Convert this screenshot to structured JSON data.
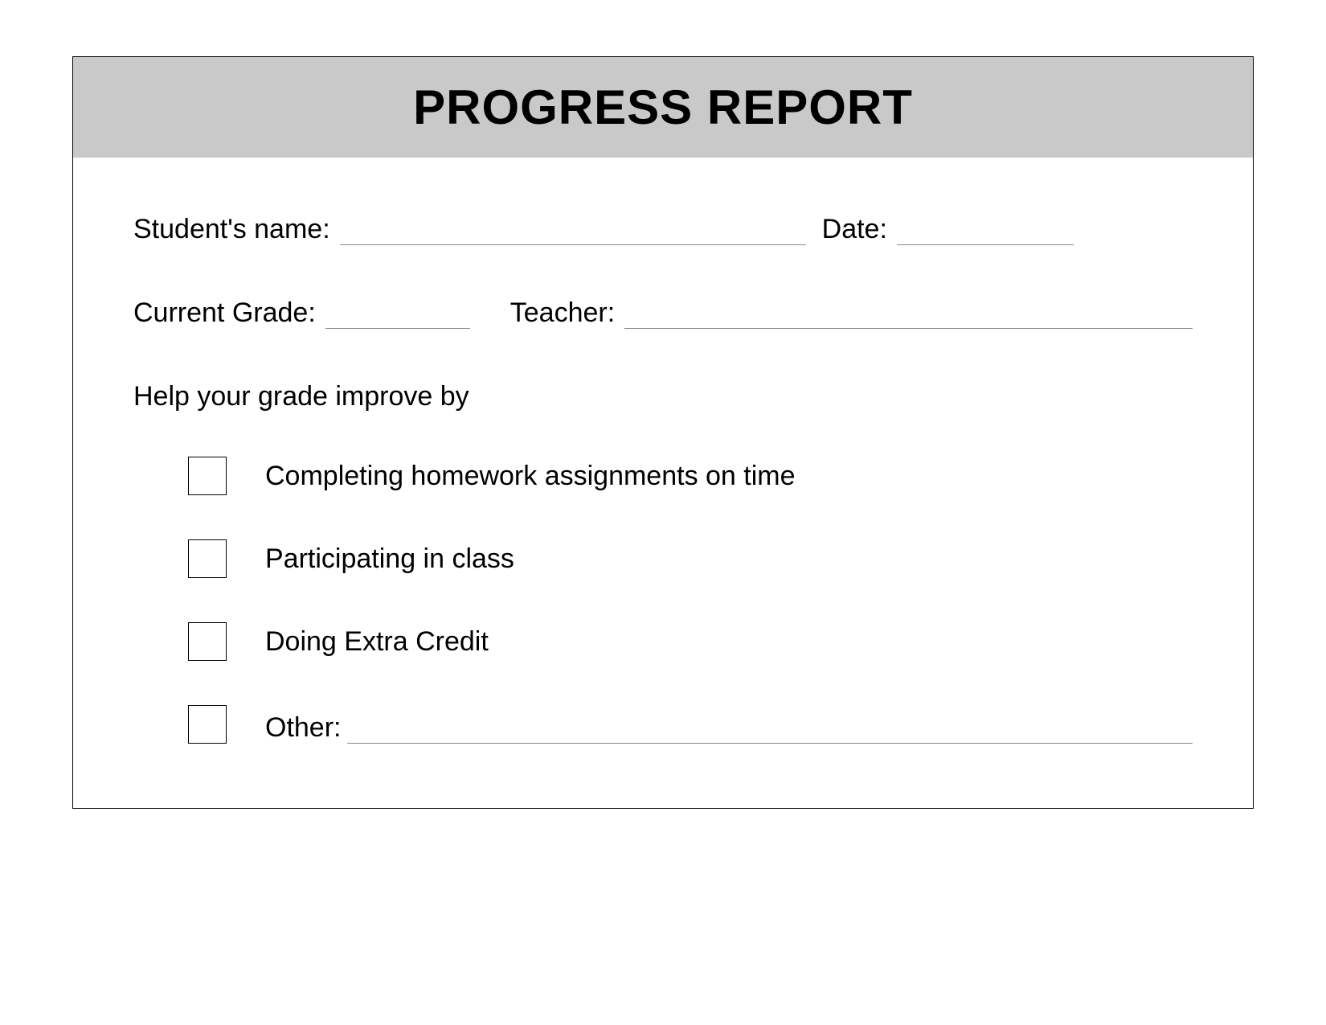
{
  "header": {
    "title": "PROGRESS REPORT",
    "background_color": "#c9c9c9",
    "title_fontsize": 60,
    "title_color": "#000000"
  },
  "fields": {
    "student_name_label": "Student's name:",
    "date_label": "Date:",
    "current_grade_label": "Current Grade:",
    "teacher_label": "Teacher:"
  },
  "improve_section": {
    "prompt": "Help your grade improve by",
    "items": [
      {
        "label": "Completing homework assignments on time"
      },
      {
        "label": "Participating in class"
      },
      {
        "label": "Doing Extra Credit"
      },
      {
        "label": "Other:"
      }
    ]
  },
  "style": {
    "page_background": "#ffffff",
    "border_color": "#000000",
    "line_color": "#888888",
    "body_fontsize": 34,
    "text_color": "#000000",
    "checkbox_size": 48,
    "font_family": "Verdana"
  }
}
